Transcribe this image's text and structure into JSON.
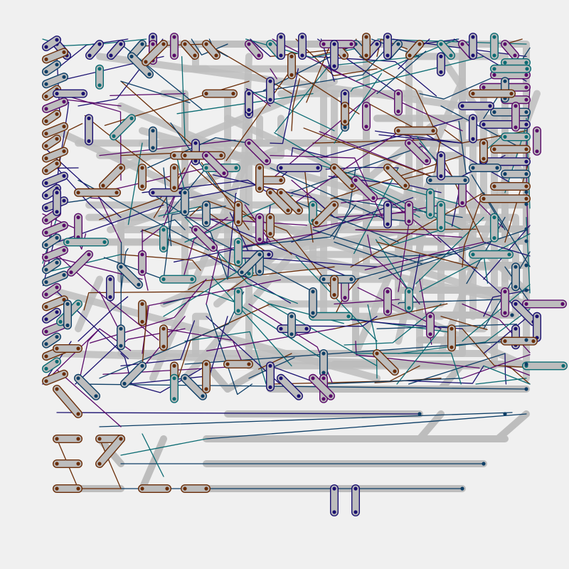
{
  "colors": {
    "background": "#f0f0f0",
    "trace": "#bdbdbd",
    "capsule_fill": "#bdbdbd",
    "navy": "#1a1070",
    "purple": "#5a0a6a",
    "teal": "#0b6b72",
    "brown": "#6a2d08",
    "blue": "#0d3e66"
  }
}
